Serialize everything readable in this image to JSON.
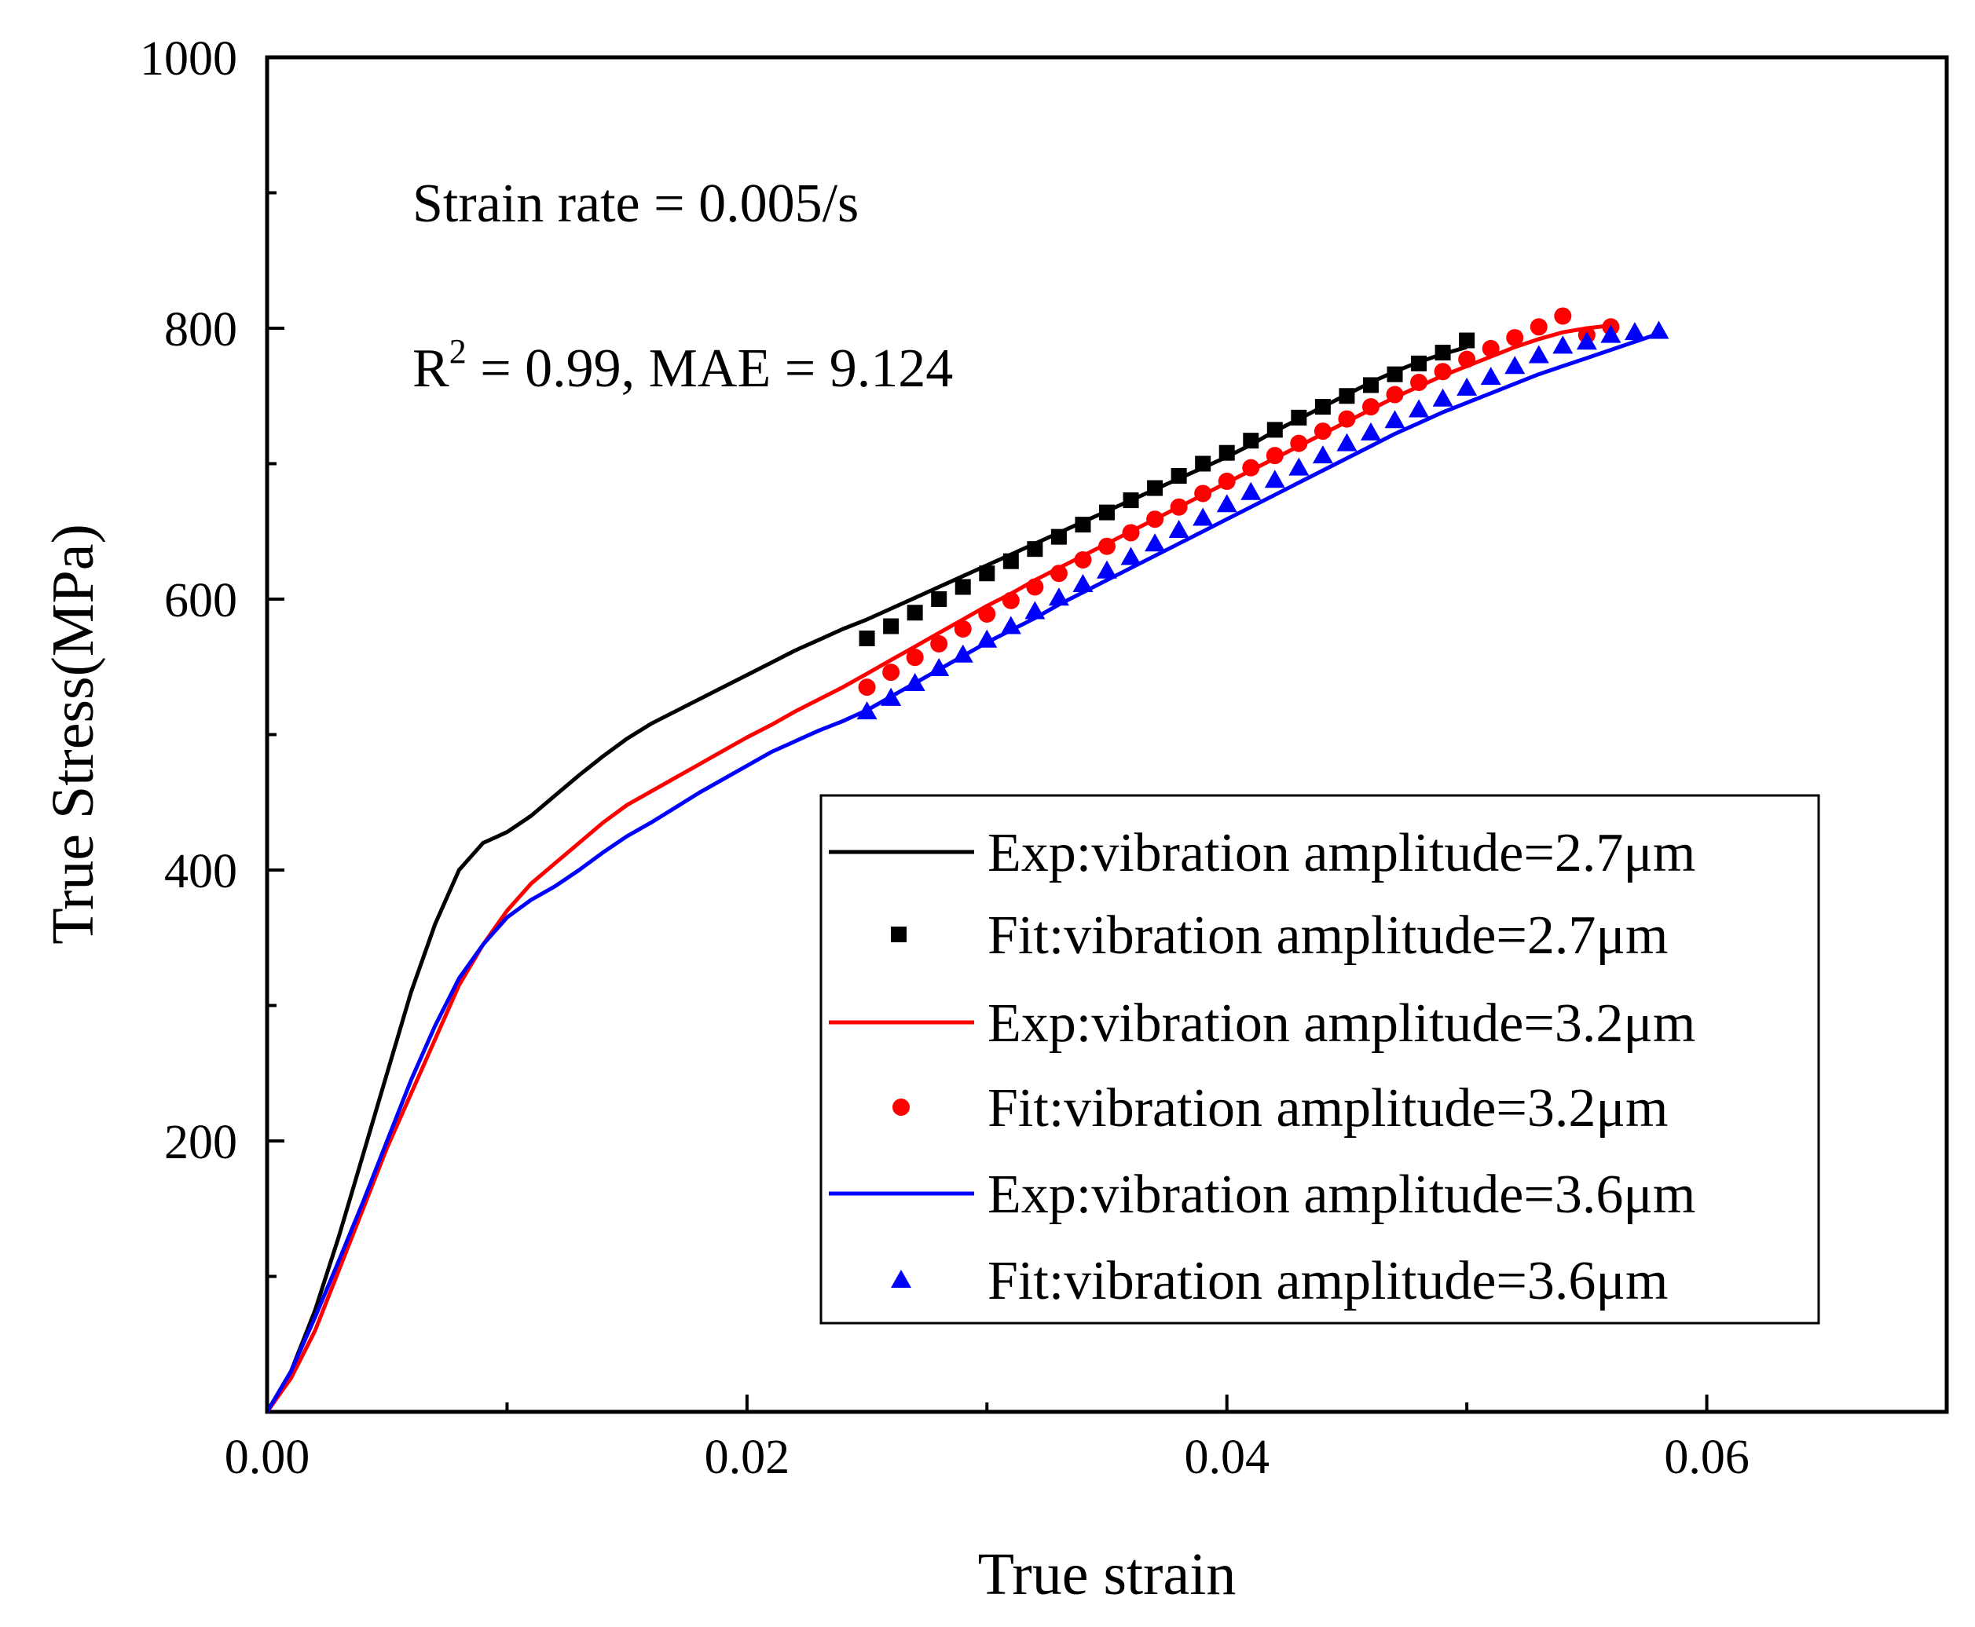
{
  "chart_data": {
    "type": "line",
    "title": "",
    "xlabel": "True strain",
    "ylabel": "True Stress(MPa)",
    "xlim": [
      0,
      0.07
    ],
    "ylim": [
      0,
      1000
    ],
    "x_ticks": [
      0.0,
      0.02,
      0.04,
      0.06
    ],
    "x_tick_labels": [
      "0.00",
      "0.02",
      "0.04",
      "0.06"
    ],
    "x_minor_ticks": [
      0.01,
      0.03,
      0.05
    ],
    "y_ticks": [
      200,
      400,
      600,
      800,
      1000
    ],
    "y_tick_labels": [
      "200",
      "400",
      "600",
      "800",
      "1000"
    ],
    "y_minor_ticks": [
      100,
      300,
      500,
      700,
      900
    ],
    "grid": false,
    "legend_position": "bottom-right",
    "annotations": {
      "strain_rate": "Strain rate = 0.005/s",
      "r2_prefix": "R",
      "r2_sup": "2",
      "r2_rest": " = 0.99, MAE = 9.124"
    },
    "series": [
      {
        "name": "Exp:vibration amplitude=2.7μm",
        "kind": "line",
        "color": "#000000",
        "x": [
          0.0,
          0.001,
          0.002,
          0.003,
          0.004,
          0.005,
          0.006,
          0.007,
          0.008,
          0.009,
          0.01,
          0.011,
          0.012,
          0.013,
          0.014,
          0.015,
          0.016,
          0.017,
          0.018,
          0.019,
          0.02,
          0.021,
          0.022,
          0.023,
          0.024,
          0.025,
          0.026,
          0.027,
          0.028,
          0.029,
          0.03,
          0.031,
          0.032,
          0.033,
          0.034,
          0.035,
          0.036,
          0.037,
          0.038,
          0.039,
          0.04,
          0.041,
          0.042,
          0.043,
          0.044,
          0.045,
          0.046,
          0.047,
          0.048,
          0.049,
          0.05
        ],
        "y": [
          0,
          30,
          75,
          130,
          190,
          250,
          310,
          360,
          400,
          420,
          428,
          440,
          455,
          470,
          484,
          497,
          508,
          517,
          526,
          535,
          544,
          553,
          562,
          570,
          578,
          585,
          593,
          601,
          609,
          617,
          625,
          633,
          641,
          649,
          657,
          665,
          673,
          681,
          689,
          697,
          705,
          714,
          724,
          733,
          742,
          751,
          760,
          768,
          775,
          781,
          786
        ]
      },
      {
        "name": "Fit:vibration amplitude=2.7μm",
        "kind": "square",
        "color": "#000000",
        "x": [
          0.025,
          0.026,
          0.027,
          0.028,
          0.029,
          0.03,
          0.031,
          0.032,
          0.033,
          0.034,
          0.035,
          0.036,
          0.037,
          0.038,
          0.039,
          0.04,
          0.041,
          0.042,
          0.043,
          0.044,
          0.045,
          0.046,
          0.047,
          0.048,
          0.049,
          0.05
        ],
        "y": [
          571,
          580,
          590,
          600,
          609,
          619,
          628,
          637,
          646,
          655,
          664,
          673,
          682,
          691,
          700,
          708,
          717,
          725,
          734,
          742,
          750,
          758,
          766,
          774,
          782,
          791
        ]
      },
      {
        "name": "Exp:vibration amplitude=3.2μm",
        "kind": "line",
        "color": "#ff0000",
        "x": [
          0.0,
          0.001,
          0.002,
          0.003,
          0.004,
          0.005,
          0.006,
          0.007,
          0.008,
          0.009,
          0.01,
          0.011,
          0.012,
          0.013,
          0.014,
          0.015,
          0.016,
          0.017,
          0.018,
          0.019,
          0.02,
          0.021,
          0.022,
          0.023,
          0.024,
          0.025,
          0.026,
          0.027,
          0.028,
          0.029,
          0.03,
          0.031,
          0.032,
          0.033,
          0.034,
          0.035,
          0.036,
          0.037,
          0.038,
          0.039,
          0.04,
          0.041,
          0.042,
          0.043,
          0.044,
          0.045,
          0.046,
          0.047,
          0.048,
          0.049,
          0.05,
          0.051,
          0.052,
          0.053,
          0.054,
          0.055,
          0.056
        ],
        "y": [
          0,
          25,
          60,
          105,
          150,
          195,
          235,
          275,
          315,
          345,
          370,
          390,
          405,
          420,
          435,
          448,
          458,
          468,
          478,
          488,
          498,
          507,
          517,
          526,
          535,
          545,
          555,
          565,
          575,
          585,
          595,
          604,
          614,
          623,
          632,
          641,
          650,
          659,
          668,
          677,
          686,
          695,
          704,
          713,
          722,
          731,
          740,
          749,
          757,
          765,
          772,
          779,
          786,
          792,
          797,
          800,
          802
        ]
      },
      {
        "name": "Fit:vibration amplitude=3.2μm",
        "kind": "circle",
        "color": "#ff0000",
        "x": [
          0.025,
          0.026,
          0.027,
          0.028,
          0.029,
          0.03,
          0.031,
          0.032,
          0.033,
          0.034,
          0.035,
          0.036,
          0.037,
          0.038,
          0.039,
          0.04,
          0.041,
          0.042,
          0.043,
          0.044,
          0.045,
          0.046,
          0.047,
          0.048,
          0.049,
          0.05,
          0.051,
          0.052,
          0.053,
          0.054,
          0.055,
          0.056
        ],
        "y": [
          535,
          546,
          557,
          567,
          578,
          589,
          599,
          609,
          619,
          629,
          639,
          649,
          659,
          668,
          678,
          687,
          697,
          706,
          715,
          724,
          733,
          742,
          751,
          760,
          768,
          777,
          785,
          793,
          801,
          809,
          795,
          801
        ]
      },
      {
        "name": "Exp:vibration amplitude=3.6μm",
        "kind": "line",
        "color": "#0000ff",
        "x": [
          0.0,
          0.001,
          0.002,
          0.003,
          0.004,
          0.005,
          0.006,
          0.007,
          0.008,
          0.009,
          0.01,
          0.011,
          0.012,
          0.013,
          0.014,
          0.015,
          0.016,
          0.017,
          0.018,
          0.019,
          0.02,
          0.021,
          0.022,
          0.023,
          0.024,
          0.025,
          0.026,
          0.027,
          0.028,
          0.029,
          0.03,
          0.031,
          0.032,
          0.033,
          0.034,
          0.035,
          0.036,
          0.037,
          0.038,
          0.039,
          0.04,
          0.041,
          0.042,
          0.043,
          0.044,
          0.045,
          0.046,
          0.047,
          0.048,
          0.049,
          0.05,
          0.051,
          0.052,
          0.053,
          0.054,
          0.055,
          0.056,
          0.057,
          0.058
        ],
        "y": [
          0,
          30,
          70,
          112,
          155,
          200,
          245,
          285,
          320,
          345,
          365,
          378,
          388,
          400,
          413,
          425,
          435,
          446,
          457,
          467,
          477,
          487,
          495,
          503,
          510,
          518,
          528,
          538,
          548,
          558,
          568,
          577,
          586,
          596,
          605,
          614,
          623,
          632,
          641,
          650,
          659,
          668,
          677,
          686,
          695,
          704,
          713,
          722,
          730,
          738,
          745,
          752,
          759,
          766,
          772,
          778,
          784,
          790,
          796
        ]
      },
      {
        "name": "Fit:vibration amplitude=3.6μm",
        "kind": "triangle",
        "color": "#0000ff",
        "x": [
          0.025,
          0.026,
          0.027,
          0.028,
          0.029,
          0.03,
          0.031,
          0.032,
          0.033,
          0.034,
          0.035,
          0.036,
          0.037,
          0.038,
          0.039,
          0.04,
          0.041,
          0.042,
          0.043,
          0.044,
          0.045,
          0.046,
          0.047,
          0.048,
          0.049,
          0.05,
          0.051,
          0.052,
          0.053,
          0.054,
          0.055,
          0.056,
          0.057,
          0.058
        ],
        "y": [
          517,
          527,
          538,
          549,
          559,
          570,
          580,
          591,
          601,
          611,
          621,
          631,
          641,
          651,
          660,
          670,
          679,
          688,
          697,
          706,
          715,
          723,
          732,
          740,
          748,
          756,
          764,
          772,
          780,
          787,
          790,
          795,
          797,
          798
        ]
      }
    ]
  }
}
